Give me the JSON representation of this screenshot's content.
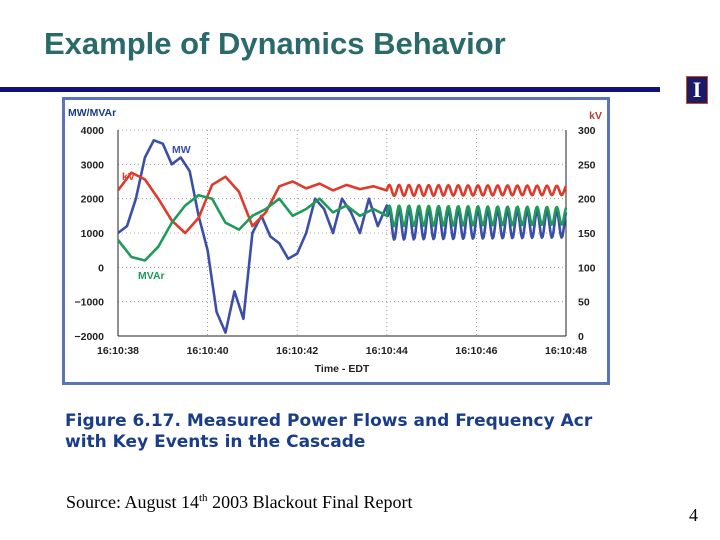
{
  "slide": {
    "title": "Example of Dynamics Behavior",
    "logo_text": "I",
    "caption_line1": "Figure 6.17. Measured Power Flows and Frequency Acr",
    "caption_line2": "with Key Events in the Cascade",
    "source_prefix": "Source: August 14",
    "source_sup": "th",
    "source_suffix": " 2003 Blackout Final Report",
    "page_number": "4"
  },
  "colors": {
    "title": "#2b6a6a",
    "rule": "#12127a",
    "axis_label": "#1a3d8a",
    "mw": "#3b4ea8",
    "kv": "#e03a2a",
    "mvar": "#1f9a5a",
    "frame": "#5a76b8"
  },
  "chart_data": {
    "type": "line",
    "title": "",
    "xlabel": "Time - EDT",
    "left_axis_label": "MW/MVAr",
    "right_axis_label": "kV",
    "x_ticks": [
      "16:10:38",
      "16:10:40",
      "16:10:42",
      "16:10:44",
      "16:10:46",
      "16:10:48"
    ],
    "xlim": [
      38,
      48
    ],
    "y_left_ticks": [
      4000,
      3000,
      2000,
      1000,
      0,
      -1000,
      -2000
    ],
    "y_left_tick_labels": [
      "4000",
      "3000",
      "2000",
      "1000",
      "0",
      "−1000",
      "−2000"
    ],
    "ylim_left": [
      -2000,
      4000
    ],
    "y_right_ticks": [
      300,
      250,
      200,
      150,
      100,
      50,
      0
    ],
    "ylim_right": [
      0,
      300
    ],
    "grid": true,
    "series": [
      {
        "name": "MW",
        "label": "MW",
        "axis": "left",
        "x": [
          38,
          38.2,
          38.4,
          38.6,
          38.8,
          39.0,
          39.2,
          39.4,
          39.6,
          39.8,
          40.0,
          40.2,
          40.4,
          40.6,
          40.8,
          41.0,
          41.2,
          41.4,
          41.6,
          41.8,
          42.0,
          42.2,
          42.4,
          42.6,
          42.8,
          43.0,
          43.2,
          43.4,
          43.6,
          43.8,
          44.0
        ],
        "y": [
          1000,
          1200,
          2000,
          3200,
          3700,
          3600,
          3000,
          3200,
          2800,
          1500,
          500,
          -1300,
          -1900,
          -700,
          -1500,
          1000,
          1500,
          900,
          700,
          250,
          400,
          1000,
          2000,
          1700,
          1000,
          2000,
          1600,
          1000,
          2000,
          1200,
          1800
        ],
        "oscillation_center": 1250,
        "oscillation_amplitude": 450,
        "oscillation_period_s": 0.22,
        "oscillation_end": 48
      },
      {
        "name": "kV",
        "label": "kV",
        "axis": "right",
        "x": [
          38,
          38.3,
          38.6,
          38.9,
          39.2,
          39.5,
          39.8,
          40.1,
          40.4,
          40.7,
          41.0,
          41.3,
          41.6,
          41.9,
          42.2,
          42.5,
          42.8,
          43.1,
          43.4,
          43.7,
          44.0
        ],
        "y": [
          212,
          238,
          228,
          200,
          168,
          150,
          172,
          220,
          232,
          210,
          160,
          180,
          218,
          225,
          215,
          222,
          212,
          220,
          214,
          218,
          212
        ],
        "oscillation_center": 212,
        "oscillation_amplitude": 8,
        "oscillation_period_s": 0.22,
        "oscillation_end": 48
      },
      {
        "name": "MVAr",
        "label": "MVAr",
        "axis": "left",
        "x": [
          38,
          38.3,
          38.6,
          38.9,
          39.2,
          39.5,
          39.8,
          40.1,
          40.4,
          40.7,
          41.0,
          41.3,
          41.6,
          41.9,
          42.2,
          42.5,
          42.8,
          43.1,
          43.4,
          43.7,
          44.0
        ],
        "y": [
          800,
          300,
          200,
          600,
          1300,
          1800,
          2100,
          2000,
          1300,
          1100,
          1500,
          1700,
          2000,
          1500,
          1700,
          2000,
          1600,
          1800,
          1500,
          1700,
          1500
        ],
        "oscillation_center": 1500,
        "oscillation_amplitude": 300,
        "oscillation_period_s": 0.22,
        "oscillation_end": 48
      }
    ]
  }
}
